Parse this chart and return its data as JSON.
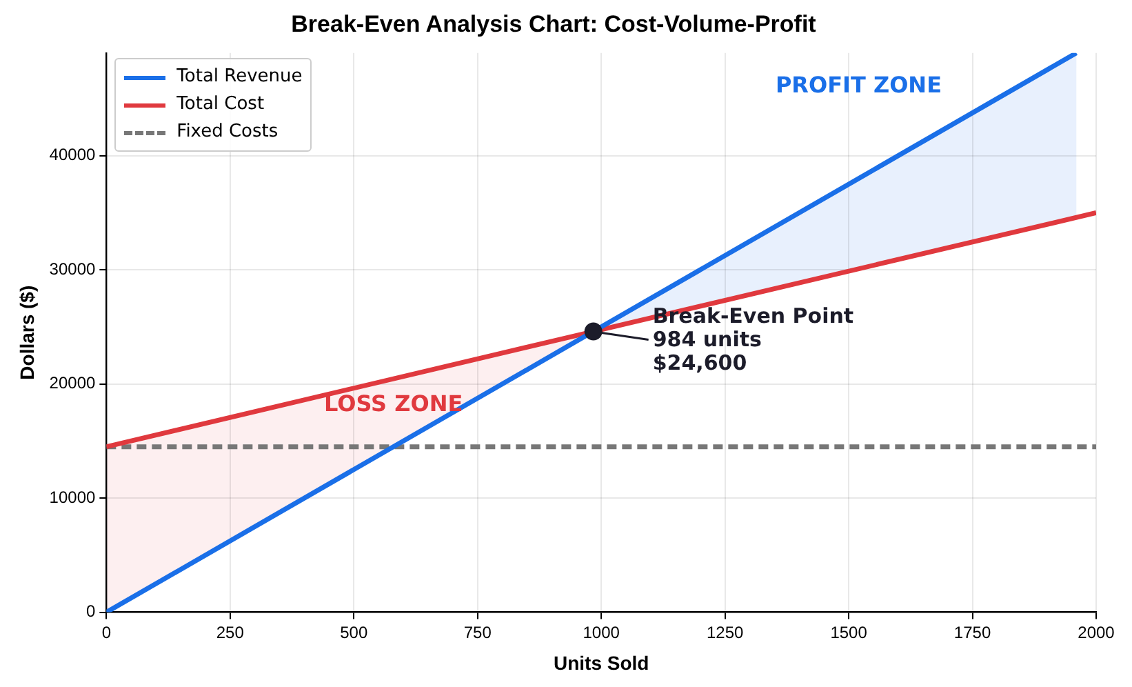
{
  "chart_data": {
    "type": "line",
    "title": "Break-Even Analysis Chart: Cost-Volume-Profit",
    "xlabel": "Units Sold",
    "ylabel": "Dollars ($)",
    "xlim": [
      0,
      2000
    ],
    "xticks": [
      0,
      250,
      500,
      750,
      1000,
      1250,
      1500,
      1750,
      2000
    ],
    "ylim": [
      0,
      49000
    ],
    "yticks": [
      0,
      10000,
      20000,
      30000,
      40000
    ],
    "series": [
      {
        "name": "Total Revenue",
        "color": "#1a6fe8",
        "x": [
          0,
          984,
          1960
        ],
        "values": [
          0,
          24600,
          49000
        ],
        "lower": [
          null,
          24600,
          34600
        ],
        "upper": [
          null,
          24600,
          49000
        ]
      },
      {
        "name": "Total Cost",
        "color": "#e0393e",
        "x": [
          0,
          984,
          2000
        ],
        "values": [
          14500,
          24600,
          35000
        ],
        "lower": [
          0,
          24600,
          null
        ],
        "upper": [
          14500,
          24600,
          null
        ]
      },
      {
        "name": "Fixed Costs",
        "color": "#777777",
        "x": [
          0,
          2000
        ],
        "values": [
          14500,
          14500
        ],
        "line_style": "dashed"
      },
      {
        "type": "scatter",
        "color": "#1c1c2a",
        "x": [
          984
        ],
        "values": [
          24600
        ],
        "marker": "circle"
      }
    ],
    "annotations": [
      {
        "text": "Break-Even Point\n984 units\n$24,600",
        "x": 984,
        "y": 24600
      },
      "LOSS ZONE",
      "PROFIT ZONE"
    ],
    "grid": true,
    "legend": "top left",
    "marker": "none",
    "line_style": "solid"
  }
}
